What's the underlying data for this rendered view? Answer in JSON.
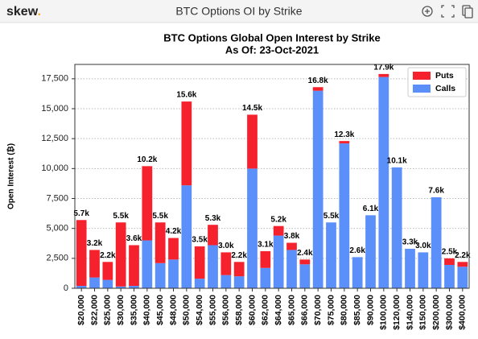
{
  "header": {
    "logo": "skew",
    "logo_dot": ".",
    "title": "BTC Options OI by Strike"
  },
  "chart_data": {
    "type": "stacked_bar",
    "title": "BTC Options Global Open Interest by Strike",
    "subtitle": "As Of: 23-Oct-2021",
    "y_label": "Open Interest (₿)",
    "categories": [
      "$20,000",
      "$22,000",
      "$25,000",
      "$30,000",
      "$35,000",
      "$40,000",
      "$45,000",
      "$48,000",
      "$50,000",
      "$54,000",
      "$55,000",
      "$56,000",
      "$58,000",
      "$60,000",
      "$62,000",
      "$64,000",
      "$65,000",
      "$66,000",
      "$70,000",
      "$75,000",
      "$80,000",
      "$85,000",
      "$90,000",
      "$100,000",
      "$120,000",
      "$140,000",
      "$150,000",
      "$200,000",
      "$300,000",
      "$400,000"
    ],
    "series": [
      {
        "name": "Calls",
        "color": "#5b8ff9",
        "values": [
          200,
          900,
          700,
          150,
          200,
          4000,
          2100,
          2400,
          8600,
          800,
          3600,
          1100,
          1000,
          10000,
          1700,
          4400,
          3200,
          2000,
          16500,
          5500,
          12100,
          2600,
          6100,
          17650,
          10100,
          3300,
          3000,
          7600,
          1950,
          1800
        ]
      },
      {
        "name": "Puts",
        "color": "#f5222d",
        "values": [
          5500,
          2300,
          1500,
          5350,
          3400,
          6200,
          3400,
          1800,
          7000,
          2700,
          1700,
          1900,
          1200,
          4500,
          1400,
          800,
          600,
          400,
          300,
          0,
          200,
          0,
          0,
          250,
          0,
          0,
          0,
          0,
          550,
          400
        ]
      }
    ],
    "totals": {
      "values": [
        5700,
        3200,
        2200,
        5500,
        3600,
        10200,
        5500,
        4200,
        15600,
        3500,
        5300,
        3000,
        2200,
        14500,
        3100,
        5200,
        3800,
        2400,
        16800,
        5500,
        12300,
        2600,
        6100,
        17900,
        10100,
        3300,
        3000,
        7600,
        2500,
        2200
      ],
      "value_labels": [
        "5.7k",
        "3.2k",
        "2.2k",
        "5.5k",
        "3.6k",
        "10.2k",
        "5.5k",
        "4.2k",
        "15.6k",
        "3.5k",
        "5.3k",
        "3.0k",
        "2.2k",
        "14.5k",
        "3.1k",
        "5.2k",
        "3.8k",
        "2.4k",
        "16.8k",
        "5.5k",
        "12.3k",
        "2.6k",
        "6.1k",
        "17.9k",
        "10.1k",
        "3.3k",
        "3.0k",
        "7.6k",
        "2.5k",
        "2.2k"
      ]
    },
    "ylim": [
      0,
      18700
    ],
    "yticks": [
      0,
      {
        "value": 2500,
        "label": "2,500"
      },
      {
        "value": 5000,
        "label": "5,000"
      },
      {
        "value": 7500,
        "label": "7,500"
      },
      {
        "value": 10000,
        "label": "10,000"
      },
      {
        "value": 12500,
        "label": "12,500"
      },
      {
        "value": 15000,
        "label": "15,000"
      },
      {
        "value": 17500,
        "label": "17,500"
      }
    ],
    "grid": true,
    "legend": "upper right"
  }
}
